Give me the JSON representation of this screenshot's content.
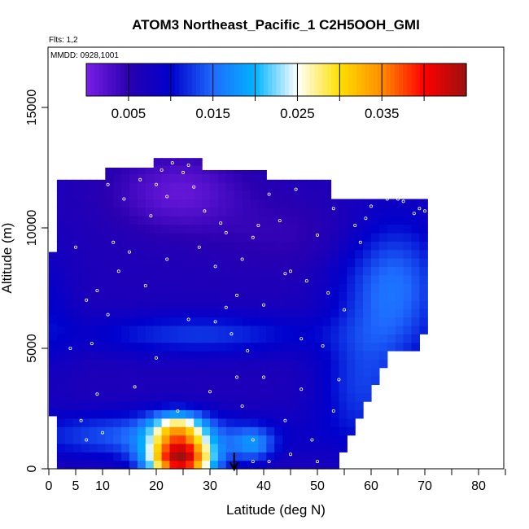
{
  "chart_data": {
    "type": "heatmap",
    "title": "ATOM3 Northeast_Pacific_1 C2H5OOH_GMI",
    "flights_text": "Flts: 1,2",
    "date_text": "MMDD: 0928,1001",
    "xlabel": "Latitude (deg N)",
    "ylabel": "Altitude (m)",
    "xlim": [
      0,
      85
    ],
    "ylim": [
      0,
      17500
    ],
    "x_ticks": [
      0,
      5,
      10,
      20,
      30,
      40,
      50,
      60,
      70,
      80
    ],
    "x_tick_labels": [
      "0",
      "5",
      "10",
      "20",
      "30",
      "40",
      "50",
      "60",
      "70",
      "80"
    ],
    "x_minor_ticks": [
      15,
      25,
      35,
      45,
      55,
      65,
      75,
      85
    ],
    "y_ticks": [
      0,
      5000,
      10000,
      15000
    ],
    "y_tick_labels": [
      "0",
      "5000",
      "10000",
      "15000"
    ],
    "colorbar": {
      "min": 0.0,
      "max": 0.045,
      "tick_values": [
        0.005,
        0.015,
        0.025,
        0.035
      ],
      "tick_labels": [
        "0.005",
        "0.015",
        "0.025",
        "0.035"
      ],
      "colors": [
        "#7a1fe6",
        "#2a00b0",
        "#0000cc",
        "#1f6bff",
        "#00b4ff",
        "#ffffff",
        "#ffe000",
        "#ff8c00",
        "#ff0000",
        "#9c1010"
      ]
    },
    "arrow_latitude": 34.5,
    "grid": false,
    "legend": "none",
    "sample_points": [
      [
        6,
        2000
      ],
      [
        7,
        1200
      ],
      [
        8,
        5200
      ],
      [
        9,
        7400
      ],
      [
        10,
        1500
      ],
      [
        11,
        11800
      ],
      [
        12,
        9400
      ],
      [
        14,
        11200
      ],
      [
        15,
        9000
      ],
      [
        17,
        12000
      ],
      [
        19,
        10500
      ],
      [
        20,
        11800
      ],
      [
        21,
        12400
      ],
      [
        22,
        11300
      ],
      [
        23,
        12700
      ],
      [
        25,
        12300
      ],
      [
        26,
        12600
      ],
      [
        27,
        11700
      ],
      [
        29,
        10700
      ],
      [
        31,
        8400
      ],
      [
        32,
        10200
      ],
      [
        33,
        6700
      ],
      [
        35,
        7200
      ],
      [
        35,
        3800
      ],
      [
        36,
        2600
      ],
      [
        37,
        4900
      ],
      [
        38,
        9600
      ],
      [
        38,
        1200
      ],
      [
        39,
        10100
      ],
      [
        40,
        3800
      ],
      [
        40,
        6800
      ],
      [
        41,
        11400
      ],
      [
        43,
        10300
      ],
      [
        44,
        8100
      ],
      [
        44,
        2000
      ],
      [
        45,
        600
      ],
      [
        46,
        11600
      ],
      [
        47,
        3300
      ],
      [
        48,
        7800
      ],
      [
        49,
        1200
      ],
      [
        50,
        9700
      ],
      [
        51,
        5100
      ],
      [
        53,
        10800
      ],
      [
        53,
        2400
      ],
      [
        55,
        6600
      ],
      [
        56,
        11300
      ],
      [
        58,
        9400
      ],
      [
        60,
        10900
      ],
      [
        62,
        11400
      ],
      [
        65,
        11200
      ],
      [
        68,
        10600
      ],
      [
        70,
        10700
      ],
      [
        4,
        5000
      ],
      [
        5,
        9200
      ],
      [
        7,
        7000
      ],
      [
        9,
        3100
      ],
      [
        11,
        6400
      ],
      [
        13,
        8200
      ],
      [
        16,
        3400
      ],
      [
        18,
        7600
      ],
      [
        20,
        4600
      ],
      [
        22,
        8700
      ],
      [
        24,
        2400
      ],
      [
        26,
        6200
      ],
      [
        28,
        9200
      ],
      [
        30,
        3200
      ],
      [
        31,
        6100
      ],
      [
        33,
        9800
      ],
      [
        34,
        5600
      ],
      [
        36,
        8700
      ],
      [
        38,
        300
      ],
      [
        41,
        300
      ],
      [
        45,
        8200
      ],
      [
        47,
        5400
      ],
      [
        50,
        300
      ],
      [
        52,
        7300
      ],
      [
        54,
        3700
      ],
      [
        57,
        10100
      ],
      [
        59,
        10400
      ],
      [
        63,
        11200
      ],
      [
        66,
        11100
      ],
      [
        69,
        10800
      ]
    ]
  }
}
